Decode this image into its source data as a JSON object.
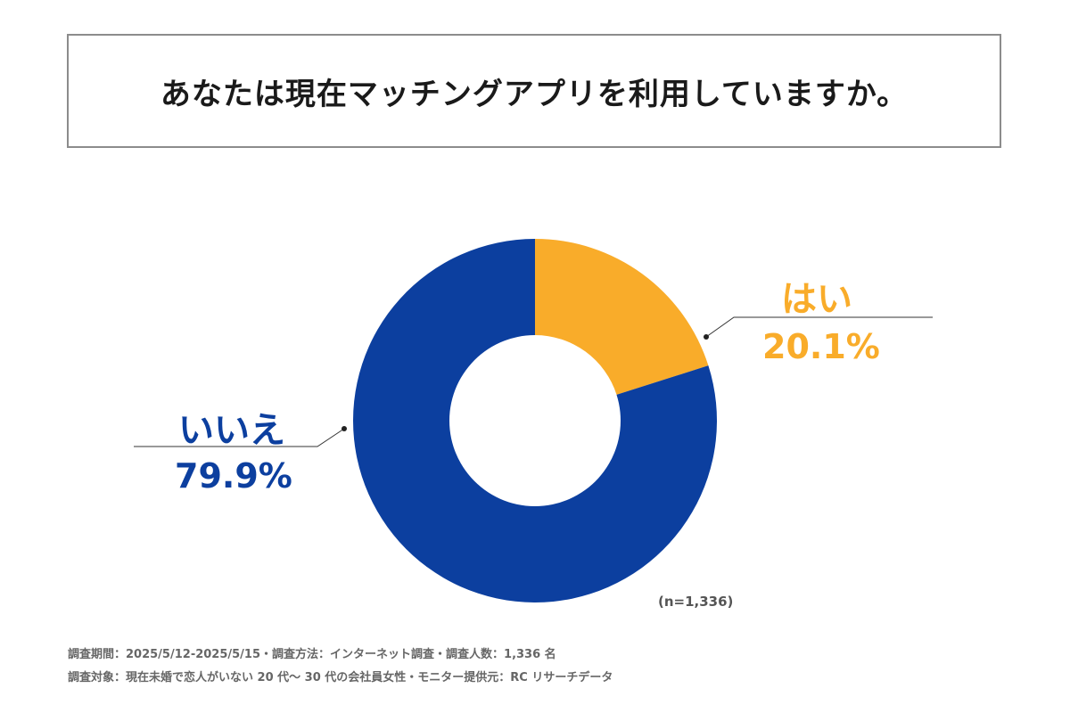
{
  "chart_data": {
    "type": "pie",
    "title": "あなたは現在マッチングアプリを利用していますか。",
    "slices": [
      {
        "label": "はい",
        "value": 20.1,
        "value_text": "20.1%",
        "color": "#f9ac2a"
      },
      {
        "label": "いいえ",
        "value": 79.9,
        "value_text": "79.9%",
        "color": "#0c3f9f"
      }
    ],
    "donut": true,
    "sample_size": "(n=1,336)"
  },
  "footnotes": {
    "line1": "調査期間：2025/5/12-2025/5/15・調査方法：インターネット調査・調査人数：1,336 名",
    "line2": "調査対象：現在未婚で恋人がいない 20 代〜 30 代の会社員女性・モニター提供元：RC リサーチデータ"
  }
}
